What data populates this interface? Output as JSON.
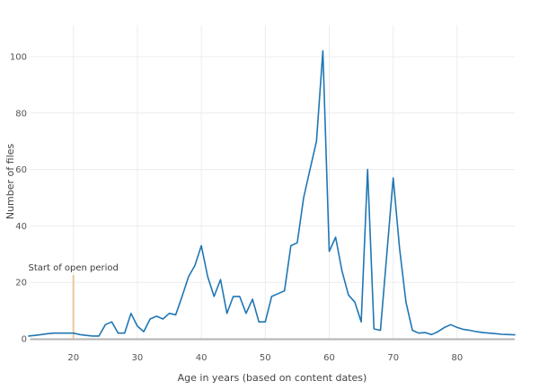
{
  "chart_data": {
    "type": "line",
    "title": "",
    "xlabel": "Age in years (based on content dates)",
    "ylabel": "Number of files",
    "x_ticks": [
      20,
      30,
      40,
      50,
      60,
      70,
      80
    ],
    "y_ticks": [
      0,
      20,
      40,
      60,
      80,
      100
    ],
    "xlim": [
      12.5,
      89.5
    ],
    "ylim": [
      0,
      108
    ],
    "grid": true,
    "legend": false,
    "series": [
      {
        "name": "Number of files",
        "color": "#1f77b4",
        "x": [
          13,
          14,
          15,
          16,
          17,
          18,
          19,
          20,
          21,
          22,
          23,
          24,
          25,
          26,
          27,
          28,
          29,
          30,
          31,
          32,
          33,
          34,
          35,
          36,
          37,
          38,
          39,
          40,
          41,
          42,
          43,
          44,
          45,
          46,
          47,
          48,
          49,
          50,
          51,
          52,
          53,
          54,
          55,
          56,
          57,
          58,
          59,
          60,
          61,
          62,
          63,
          64,
          65,
          66,
          67,
          68,
          69,
          70,
          71,
          72,
          73,
          74,
          75,
          76,
          77,
          78,
          79,
          80,
          81,
          82,
          83,
          84,
          85,
          86,
          87,
          88,
          89
        ],
        "y": [
          1,
          1.2,
          1.5,
          1.8,
          2,
          2,
          2,
          2,
          1.5,
          1.2,
          1,
          1,
          5,
          6,
          2,
          2,
          9,
          4.5,
          2.5,
          7,
          8,
          7,
          9,
          8.5,
          15,
          22,
          26,
          33,
          22,
          15,
          21,
          9,
          15,
          15,
          9,
          14,
          6,
          6,
          15,
          16,
          17,
          33,
          34,
          50,
          60,
          70,
          102,
          31,
          36,
          24,
          15.5,
          13,
          6,
          60,
          3.5,
          3,
          30,
          57,
          32,
          13,
          3,
          2,
          2.2,
          1.5,
          2.5,
          4,
          5,
          4,
          3.3,
          3,
          2.5,
          2.2,
          2,
          1.8,
          1.6,
          1.5,
          1.4
        ]
      }
    ],
    "annotation": {
      "text": "Start of open period",
      "x": 20
    }
  },
  "colors": {
    "line": "#1f77b4",
    "grid": "#ececec",
    "zero_line": "#b3b3b3",
    "tick_text": "#555555",
    "axis_title_text": "#444444",
    "annotation_line": "#e9c89c",
    "annotation_text": "#3d3d3d",
    "background": "#ffffff"
  }
}
